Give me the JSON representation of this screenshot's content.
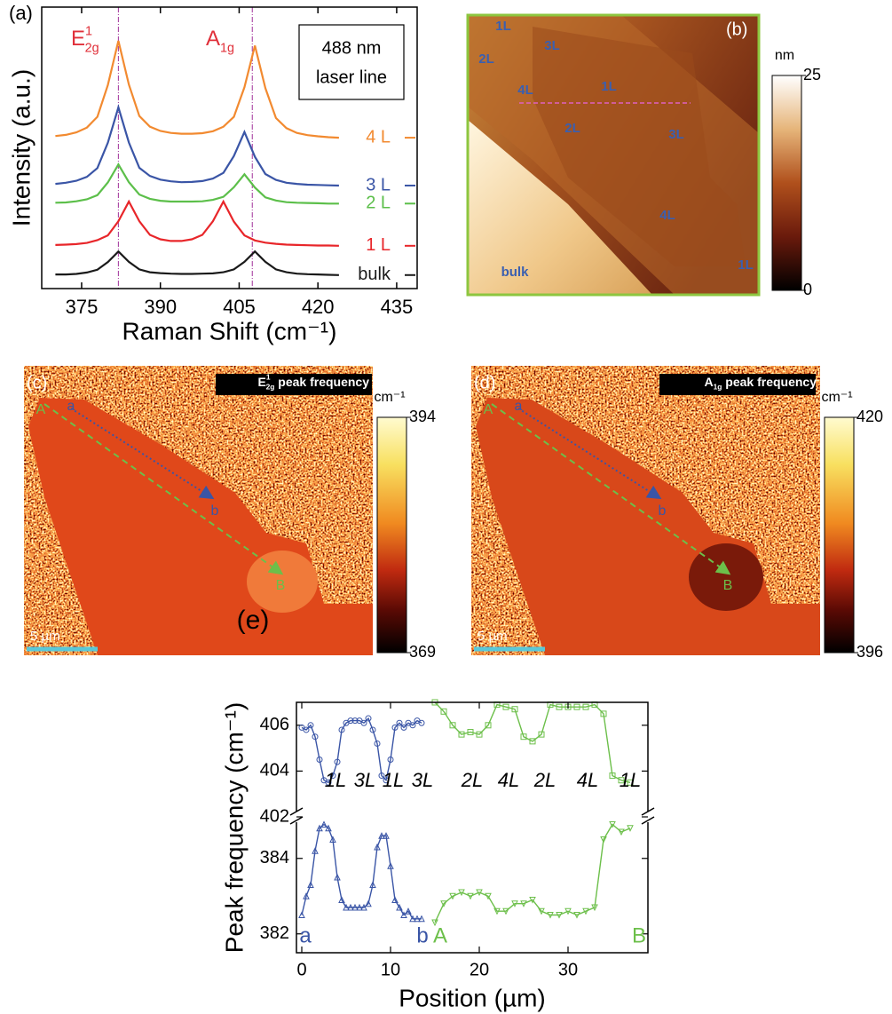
{
  "chart_data": [
    {
      "type": "line",
      "panel_label": "(a)",
      "x_label": "Raman Shift (cm⁻¹)",
      "y_label": "Intensity (a.u.)",
      "x": [
        370,
        372,
        374,
        376,
        378,
        380,
        382,
        384,
        386,
        388,
        390,
        392,
        394,
        396,
        398,
        400,
        402,
        404,
        406,
        408,
        410,
        412,
        414,
        416,
        418,
        420,
        422,
        424
      ],
      "xlim": [
        367.4,
        438.9
      ],
      "xticks": [
        375,
        390,
        405,
        420,
        435
      ],
      "ylim": [
        0,
        10
      ],
      "peak_lines": [
        382,
        407.5
      ],
      "peak_line_color": "#a0309a",
      "peak_labels": [
        {
          "base": "E",
          "sup": "1",
          "sub": "2g"
        },
        {
          "base": "A",
          "sub": "1g"
        }
      ],
      "peak_label_color": "#e0303a",
      "note": [
        "488 nm",
        "laser line"
      ],
      "series": [
        {
          "name": "4 L",
          "color": "#f28a30",
          "values": [
            5.42,
            5.46,
            5.55,
            5.72,
            6.1,
            7.23,
            8.8,
            7.25,
            6.13,
            5.75,
            5.6,
            5.53,
            5.5,
            5.5,
            5.52,
            5.59,
            5.75,
            6.1,
            7.15,
            8.63,
            7.12,
            6.06,
            5.7,
            5.53,
            5.45,
            5.41,
            5.38,
            5.36
          ]
        },
        {
          "name": "3 L",
          "color": "#3a55a6",
          "values": [
            3.72,
            3.76,
            3.83,
            3.97,
            4.28,
            5.18,
            6.44,
            5.19,
            4.29,
            4.0,
            3.87,
            3.81,
            3.78,
            3.79,
            3.82,
            3.91,
            4.11,
            4.71,
            5.56,
            4.68,
            4.07,
            3.86,
            3.76,
            3.72,
            3.69,
            3.68,
            3.67,
            3.66
          ]
        },
        {
          "name": "2 L",
          "color": "#5cbf4a",
          "values": [
            3.05,
            3.06,
            3.1,
            3.17,
            3.32,
            3.77,
            4.41,
            3.78,
            3.34,
            3.19,
            3.12,
            3.09,
            3.09,
            3.09,
            3.1,
            3.15,
            3.26,
            3.6,
            4.06,
            3.59,
            3.24,
            3.13,
            3.07,
            3.05,
            3.04,
            3.03,
            3.02,
            3.02
          ]
        },
        {
          "name": "1 L",
          "color": "#e8262a",
          "values": [
            1.55,
            1.56,
            1.58,
            1.62,
            1.72,
            1.89,
            2.39,
            3.09,
            2.39,
            1.91,
            1.75,
            1.69,
            1.69,
            1.75,
            1.91,
            2.39,
            3.09,
            2.38,
            1.89,
            1.71,
            1.63,
            1.59,
            1.56,
            1.55,
            1.54,
            1.53,
            1.53,
            1.52
          ]
        },
        {
          "name": "bulk",
          "color": "#1a1a1a",
          "values": [
            0.5,
            0.5,
            0.52,
            0.57,
            0.67,
            0.94,
            1.32,
            0.95,
            0.68,
            0.58,
            0.55,
            0.53,
            0.52,
            0.52,
            0.53,
            0.54,
            0.58,
            0.68,
            0.95,
            1.32,
            0.95,
            0.68,
            0.58,
            0.53,
            0.51,
            0.5,
            0.49,
            0.48
          ]
        }
      ]
    },
    {
      "type": "line",
      "panel_label": "(e)",
      "x_label": "Position (µm)",
      "y_label": "Peak frequency (cm⁻¹)",
      "xlim": [
        -0.6,
        39
      ],
      "xticks": [
        0,
        10,
        20,
        30
      ],
      "layer_labels": [
        "1L",
        "3L",
        "1L",
        "3L",
        "2L",
        "4L",
        "2L",
        "4L",
        "1L"
      ],
      "point_labels": [
        "a",
        "b",
        "A",
        "B"
      ],
      "panels": [
        {
          "ylim": [
            402,
            407
          ],
          "yticks": [
            402,
            404,
            406
          ],
          "series": [
            {
              "color": "#3a55a6",
              "marker": "circle",
              "x": [
                0,
                0.5,
                1,
                1.5,
                2,
                2.5,
                3,
                3.5,
                4,
                4.5,
                5,
                5.5,
                6,
                6.5,
                7,
                7.5,
                8,
                8.5,
                9,
                9.5,
                10,
                10.5,
                11,
                11.5,
                12,
                12.5,
                13,
                13.5
              ],
              "values": [
                405.9,
                405.8,
                406.0,
                405.5,
                404.5,
                403.6,
                403.5,
                403.8,
                404.4,
                405.8,
                406.1,
                406.2,
                406.2,
                406.2,
                406.1,
                406.3,
                405.8,
                405.2,
                403.8,
                403.6,
                404.5,
                405.9,
                406.1,
                405.9,
                406.1,
                406.0,
                406.2,
                406.1
              ]
            },
            {
              "color": "#6cbf4a",
              "marker": "square",
              "x": [
                15,
                16,
                17,
                18,
                19,
                20,
                21,
                22,
                23,
                24,
                25,
                26,
                27,
                28,
                29,
                30,
                31,
                32,
                33,
                34,
                35,
                36,
                37
              ],
              "values": [
                407.0,
                406.6,
                406.0,
                405.6,
                405.7,
                405.6,
                406.0,
                406.9,
                406.8,
                406.7,
                405.5,
                405.3,
                405.6,
                406.9,
                406.8,
                406.8,
                406.8,
                406.8,
                406.9,
                406.5,
                403.8,
                403.6,
                403.5
              ]
            }
          ]
        },
        {
          "ylim": [
            381.5,
            385.1
          ],
          "yticks": [
            382,
            384
          ],
          "series": [
            {
              "color": "#3a55a6",
              "marker": "triangle",
              "x": [
                0,
                0.5,
                1,
                1.5,
                2,
                2.5,
                3,
                3.5,
                4,
                4.5,
                5,
                5.5,
                6,
                6.5,
                7,
                7.5,
                8,
                8.5,
                9,
                9.5,
                10,
                10.5,
                11,
                11.5,
                12,
                12.5,
                13,
                13.5
              ],
              "values": [
                382.5,
                383.0,
                383.3,
                384.2,
                384.8,
                384.9,
                384.8,
                384.5,
                383.5,
                382.9,
                382.7,
                382.7,
                382.7,
                382.7,
                382.7,
                382.8,
                383.3,
                384.3,
                384.6,
                384.6,
                383.8,
                382.9,
                382.7,
                382.5,
                382.6,
                382.4,
                382.4,
                382.4
              ]
            },
            {
              "color": "#6cbf4a",
              "marker": "triangle-down",
              "x": [
                15,
                16,
                17,
                18,
                19,
                20,
                21,
                22,
                23,
                24,
                25,
                26,
                27,
                28,
                29,
                30,
                31,
                32,
                33,
                34,
                35,
                36,
                37
              ],
              "values": [
                382.3,
                382.8,
                383.0,
                383.1,
                383.0,
                383.1,
                383.0,
                382.6,
                382.6,
                382.8,
                382.8,
                382.9,
                382.6,
                382.5,
                382.5,
                382.6,
                382.5,
                382.6,
                382.7,
                384.5,
                384.9,
                384.7,
                384.8
              ]
            }
          ]
        }
      ]
    }
  ],
  "panels": {
    "b": {
      "label": "(b)",
      "colorbar": {
        "unit": "nm",
        "lim": [
          0,
          25
        ],
        "ticks": [
          0,
          25
        ]
      },
      "region_labels": [
        "1L",
        "3L",
        "2L",
        "4L",
        "1L",
        "2L",
        "3L",
        "4L",
        "bulk",
        "1L"
      ]
    },
    "c": {
      "label": "(c)",
      "title": {
        "base": "E",
        "sup": "1",
        "sub": "2g",
        "rest": " peak frequency"
      },
      "colorbar": {
        "unit": "cm⁻¹",
        "lim": [
          369,
          394
        ],
        "ticks": [
          369,
          394
        ]
      },
      "scale_bar": "5 µm",
      "point_labels": [
        "a",
        "b",
        "A",
        "B"
      ]
    },
    "d": {
      "label": "(d)",
      "title": {
        "base": "A",
        "sub": "1g",
        "rest": " peak frequency"
      },
      "colorbar": {
        "unit": "cm⁻¹",
        "lim": [
          396,
          420
        ],
        "ticks": [
          396,
          420
        ]
      },
      "scale_bar": "5 µm",
      "point_labels": [
        "a",
        "b",
        "A",
        "B"
      ]
    }
  }
}
